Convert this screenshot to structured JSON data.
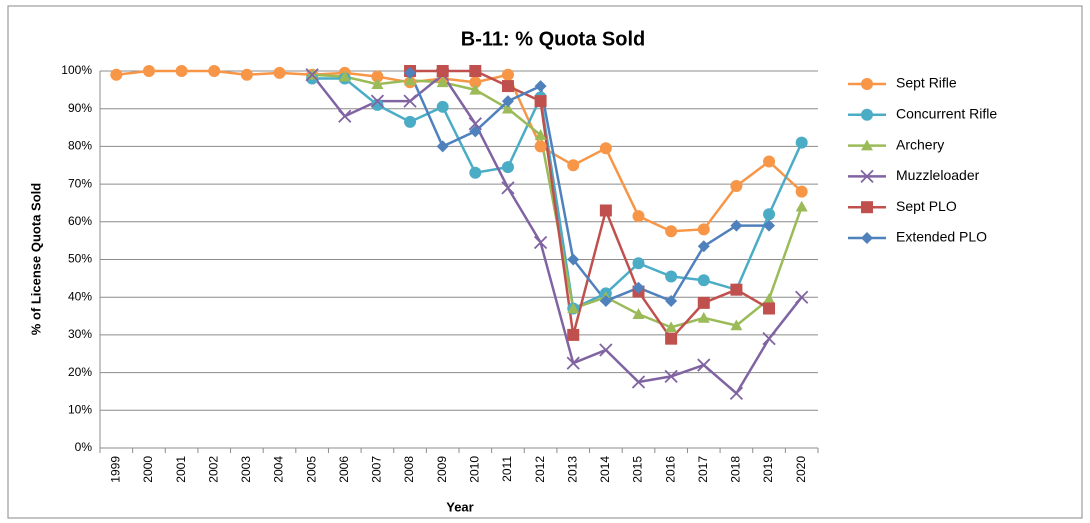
{
  "chart_data": {
    "type": "line",
    "title": "B-11: % Quota Sold",
    "x_label": "Year",
    "y_label": "% of License Quota Sold",
    "categories": [
      "1999",
      "2000",
      "2001",
      "2002",
      "2003",
      "2004",
      "2005",
      "2006",
      "2007",
      "2008",
      "2009",
      "2010",
      "2011",
      "2012",
      "2013",
      "2014",
      "2015",
      "2016",
      "2017",
      "2018",
      "2019",
      "2020"
    ],
    "ylim": [
      0,
      100
    ],
    "yticks": [
      {
        "value": 0,
        "label": "0%"
      },
      {
        "value": 10,
        "label": "10%"
      },
      {
        "value": 20,
        "label": "20%"
      },
      {
        "value": 30,
        "label": "30%"
      },
      {
        "value": 40,
        "label": "40%"
      },
      {
        "value": 50,
        "label": "50%"
      },
      {
        "value": 60,
        "label": "60%"
      },
      {
        "value": 70,
        "label": "70%"
      },
      {
        "value": 80,
        "label": "80%"
      },
      {
        "value": 90,
        "label": "90%"
      },
      {
        "value": 100,
        "label": "100%"
      }
    ],
    "grid": true,
    "legend": "right",
    "series": [
      {
        "name": "Sept Rifle",
        "color": "#f79646",
        "marker": "circle",
        "values": [
          99,
          100,
          100,
          100,
          99,
          99.5,
          99,
          99.5,
          98.5,
          97,
          98,
          97,
          99,
          80,
          75,
          79.5,
          61.5,
          57.5,
          58,
          69.5,
          76,
          68
        ]
      },
      {
        "name": "Concurrent Rifle",
        "color": "#4bacc6",
        "marker": "circle",
        "values": [
          null,
          null,
          null,
          null,
          null,
          null,
          98,
          98,
          91,
          86.5,
          90.5,
          73,
          74.5,
          93,
          37,
          41,
          49,
          45.5,
          44.5,
          42,
          62,
          81
        ]
      },
      {
        "name": "Archery",
        "color": "#9bbb59",
        "marker": "triangle",
        "values": [
          null,
          null,
          null,
          null,
          null,
          null,
          99,
          98.5,
          96.5,
          97.5,
          97,
          95,
          90,
          83,
          37,
          40,
          35.5,
          32,
          34.5,
          32.5,
          39.5,
          64
        ]
      },
      {
        "name": "Muzzleloader",
        "color": "#8064a2",
        "marker": "x",
        "values": [
          null,
          null,
          null,
          null,
          null,
          null,
          99,
          88,
          92,
          92,
          99,
          86,
          69,
          54.5,
          22.5,
          26,
          17.5,
          19,
          22,
          14.5,
          29,
          40
        ]
      },
      {
        "name": "Sept PLO",
        "color": "#c0504d",
        "marker": "square",
        "values": [
          null,
          null,
          null,
          null,
          null,
          null,
          null,
          null,
          null,
          100,
          100,
          100,
          96,
          92,
          30,
          63,
          41.5,
          29,
          38.5,
          42,
          37,
          null
        ]
      },
      {
        "name": "Extended PLO",
        "color": "#4f81bd",
        "marker": "diamond",
        "values": [
          null,
          null,
          null,
          null,
          null,
          null,
          null,
          null,
          null,
          99.5,
          80,
          84,
          92,
          96,
          50,
          39,
          42.5,
          39,
          53.5,
          59,
          59,
          null
        ]
      }
    ]
  }
}
